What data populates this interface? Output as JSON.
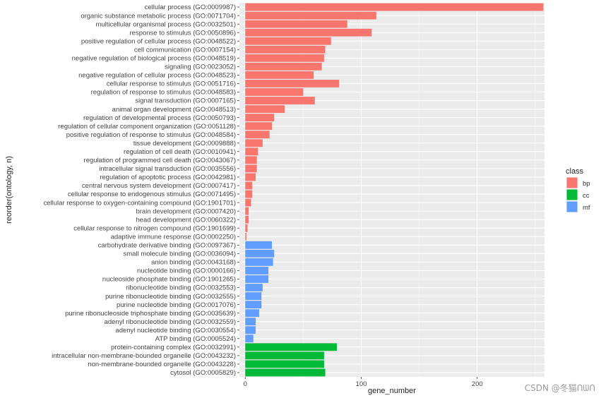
{
  "chart_data": {
    "type": "bar",
    "orientation": "horizontal",
    "xlabel": "gene_number",
    "ylabel": "reorder(ontology, n)",
    "xlim": [
      -5,
      258
    ],
    "xticks": [
      0,
      100,
      200
    ],
    "grid": true,
    "legend": {
      "title": "class",
      "position": "right"
    },
    "class_colors": {
      "bp": "#F8766D",
      "cc": "#00BA38",
      "mf": "#619CFF"
    },
    "series": [
      {
        "name": "bp",
        "color": "#F8766D"
      },
      {
        "name": "cc",
        "color": "#00BA38"
      },
      {
        "name": "mf",
        "color": "#619CFF"
      }
    ],
    "bars": [
      {
        "category": "cellular process (GO:0009987)",
        "class": "bp",
        "value": 257
      },
      {
        "category": "organic substance metabolic process (GO:0071704)",
        "class": "bp",
        "value": 113
      },
      {
        "category": "multicellular organismal process (GO:0032501)",
        "class": "bp",
        "value": 88
      },
      {
        "category": "response to stimulus (GO:0050896)",
        "class": "bp",
        "value": 109
      },
      {
        "category": "positive regulation of cellular process (GO:0048522)",
        "class": "bp",
        "value": 74
      },
      {
        "category": "cell communication (GO:0007154)",
        "class": "bp",
        "value": 69
      },
      {
        "category": "negative regulation of biological process (GO:0048519)",
        "class": "bp",
        "value": 68
      },
      {
        "category": "signaling (GO:0023052)",
        "class": "bp",
        "value": 66
      },
      {
        "category": "negative regulation of cellular process (GO:0048523)",
        "class": "bp",
        "value": 59
      },
      {
        "category": "cellular response to stimulus (GO:0051716)",
        "class": "bp",
        "value": 81
      },
      {
        "category": "regulation of response to stimulus (GO:0048583)",
        "class": "bp",
        "value": 50
      },
      {
        "category": "signal transduction (GO:0007165)",
        "class": "bp",
        "value": 60
      },
      {
        "category": "animal organ development (GO:0048513)",
        "class": "bp",
        "value": 34
      },
      {
        "category": "regulation of developmental process (GO:0050793)",
        "class": "bp",
        "value": 25
      },
      {
        "category": "regulation of cellular component organization (GO:0051128)",
        "class": "bp",
        "value": 23
      },
      {
        "category": "positive regulation of response to stimulus (GO:0048584)",
        "class": "bp",
        "value": 21
      },
      {
        "category": "tissue development (GO:0009888)",
        "class": "bp",
        "value": 15
      },
      {
        "category": "regulation of cell death (GO:0010941)",
        "class": "bp",
        "value": 11
      },
      {
        "category": "regulation of programmed cell death (GO:0043067)",
        "class": "bp",
        "value": 10
      },
      {
        "category": "intracellular signal transduction (GO:0035556)",
        "class": "bp",
        "value": 10
      },
      {
        "category": "regulation of apoptotic process (GO:0042981)",
        "class": "bp",
        "value": 9
      },
      {
        "category": "central nervous system development (GO:0007417)",
        "class": "bp",
        "value": 6
      },
      {
        "category": "cellular response to endogenous stimulus (GO:0071495)",
        "class": "bp",
        "value": 6
      },
      {
        "category": "cellular response to oxygen-containing compound (GO:1901701)",
        "class": "bp",
        "value": 5
      },
      {
        "category": "brain development (GO:0007420)",
        "class": "bp",
        "value": 3
      },
      {
        "category": "head development (GO:0060322)",
        "class": "bp",
        "value": 3
      },
      {
        "category": "cellular response to nitrogen compound (GO:1901699)",
        "class": "bp",
        "value": 2
      },
      {
        "category": "adaptive immune response (GO:0002250)",
        "class": "bp",
        "value": 1
      },
      {
        "category": "carbohydrate derivative binding (GO:0097367)",
        "class": "mf",
        "value": 23
      },
      {
        "category": "small molecule binding (GO:0036094)",
        "class": "mf",
        "value": 25
      },
      {
        "category": "anion binding (GO:0043168)",
        "class": "mf",
        "value": 24
      },
      {
        "category": "nucleotide binding (GO:0000166)",
        "class": "mf",
        "value": 20
      },
      {
        "category": "nucleoside phosphate binding (GO:1901265)",
        "class": "mf",
        "value": 20
      },
      {
        "category": "ribonucleotide binding (GO:0032553)",
        "class": "mf",
        "value": 15
      },
      {
        "category": "purine ribonucleotide binding (GO:0032555)",
        "class": "mf",
        "value": 14
      },
      {
        "category": "purine nucleotide binding (GO:0017076)",
        "class": "mf",
        "value": 14
      },
      {
        "category": "purine ribonucleoside triphosphate binding (GO:0035639)",
        "class": "mf",
        "value": 12
      },
      {
        "category": "adenyl ribonucleotide binding (GO:0032559)",
        "class": "mf",
        "value": 9
      },
      {
        "category": "adenyl nucleotide binding (GO:0030554)",
        "class": "mf",
        "value": 9
      },
      {
        "category": "ATP binding (GO:0005524)",
        "class": "mf",
        "value": 7
      },
      {
        "category": "protein-containing complex (GO:0032991)",
        "class": "cc",
        "value": 79
      },
      {
        "category": "intracellular non-membrane-bounded organelle (GO:0043232)",
        "class": "cc",
        "value": 68
      },
      {
        "category": "non-membrane-bounded organelle (GO:0043228)",
        "class": "cc",
        "value": 68
      },
      {
        "category": "cytosol (GO:0005829)",
        "class": "cc",
        "value": 69
      }
    ]
  },
  "watermark": "CSDN @冬猫ᑎᗯᑎ"
}
